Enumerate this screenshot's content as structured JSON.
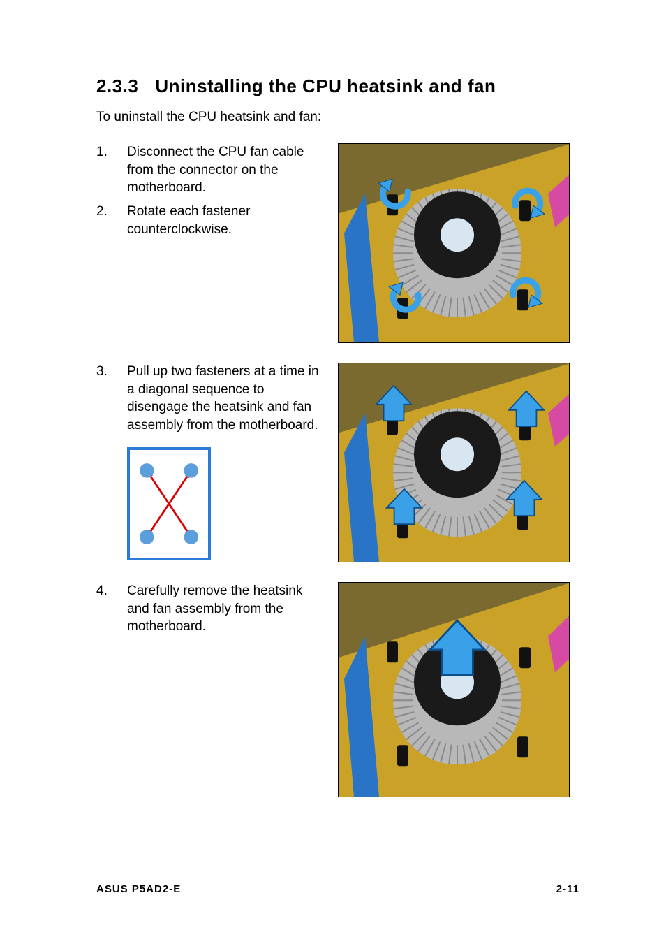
{
  "section": {
    "number": "2.3.3",
    "title": "Uninstalling the CPU heatsink and fan"
  },
  "intro": "To uninstall the CPU heatsink and fan:",
  "steps": [
    {
      "n": "1.",
      "text": "Disconnect the CPU fan cable from the connector on the motherboard."
    },
    {
      "n": "2.",
      "text": "Rotate each fastener counterclockwise."
    },
    {
      "n": "3.",
      "text": "Pull up two fasteners at a time in a diagonal sequence to disengage the heatsink and fan assembly from the motherboard."
    },
    {
      "n": "4.",
      "text": "Carefully remove the heatsink and fan assembly from the motherboard."
    }
  ],
  "diagram": {
    "border_color": "#2a7bd6",
    "dot_color": "#5a9edb",
    "arrow_color": "#d80000",
    "bg": "#ffffff",
    "width": 120,
    "height": 162
  },
  "photos": {
    "board_colors": {
      "pcb": "#c9a227",
      "fan": "#1a1a1a",
      "heatsink": "#b8b8b8",
      "ram_slot": "#2a74c7",
      "pink": "#d64aa3",
      "arrow_fill": "#3aa0e8",
      "arrow_stroke": "#0a4e8a"
    },
    "photo1_h": 284,
    "photo2_h": 284,
    "photo3_h": 306
  },
  "footer": {
    "left": "ASUS P5AD2-E",
    "right": "2-11"
  }
}
